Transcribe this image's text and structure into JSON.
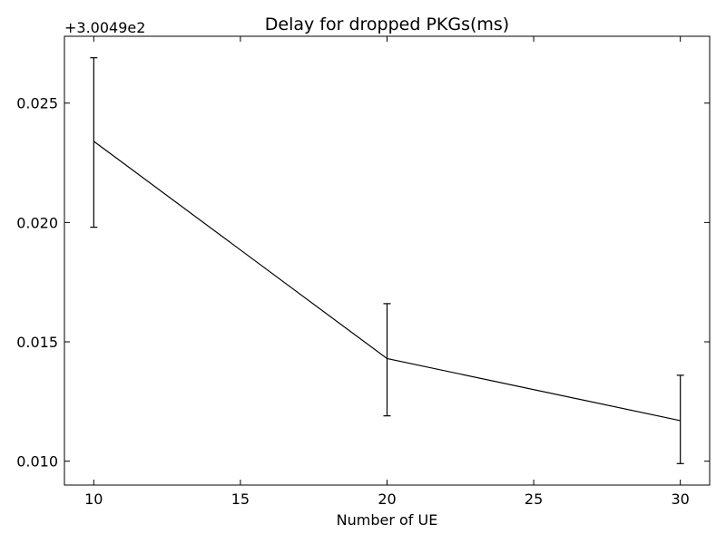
{
  "chart_data": {
    "type": "line",
    "title": "Delay for dropped PKGs(ms)",
    "xlabel": "Number of UE",
    "ylabel": "",
    "y_offset_label": "+3.0049e2",
    "xlim": [
      9,
      31
    ],
    "ylim": [
      0.009,
      0.0278
    ],
    "x_ticks": [
      10,
      15,
      20,
      25,
      30
    ],
    "x_tick_labels": [
      "10",
      "15",
      "20",
      "25",
      "30"
    ],
    "y_ticks": [
      0.01,
      0.015,
      0.02,
      0.025
    ],
    "y_tick_labels": [
      "0.010",
      "0.015",
      "0.020",
      "0.025"
    ],
    "grid": false,
    "legend": "none",
    "series": [
      {
        "color": "#000000",
        "x": [
          10,
          20,
          30
        ],
        "y": [
          0.0234,
          0.0143,
          0.0117
        ],
        "yerr_low": [
          0.0198,
          0.0119,
          0.0099
        ],
        "yerr_high": [
          0.0269,
          0.0166,
          0.0136
        ]
      }
    ]
  }
}
